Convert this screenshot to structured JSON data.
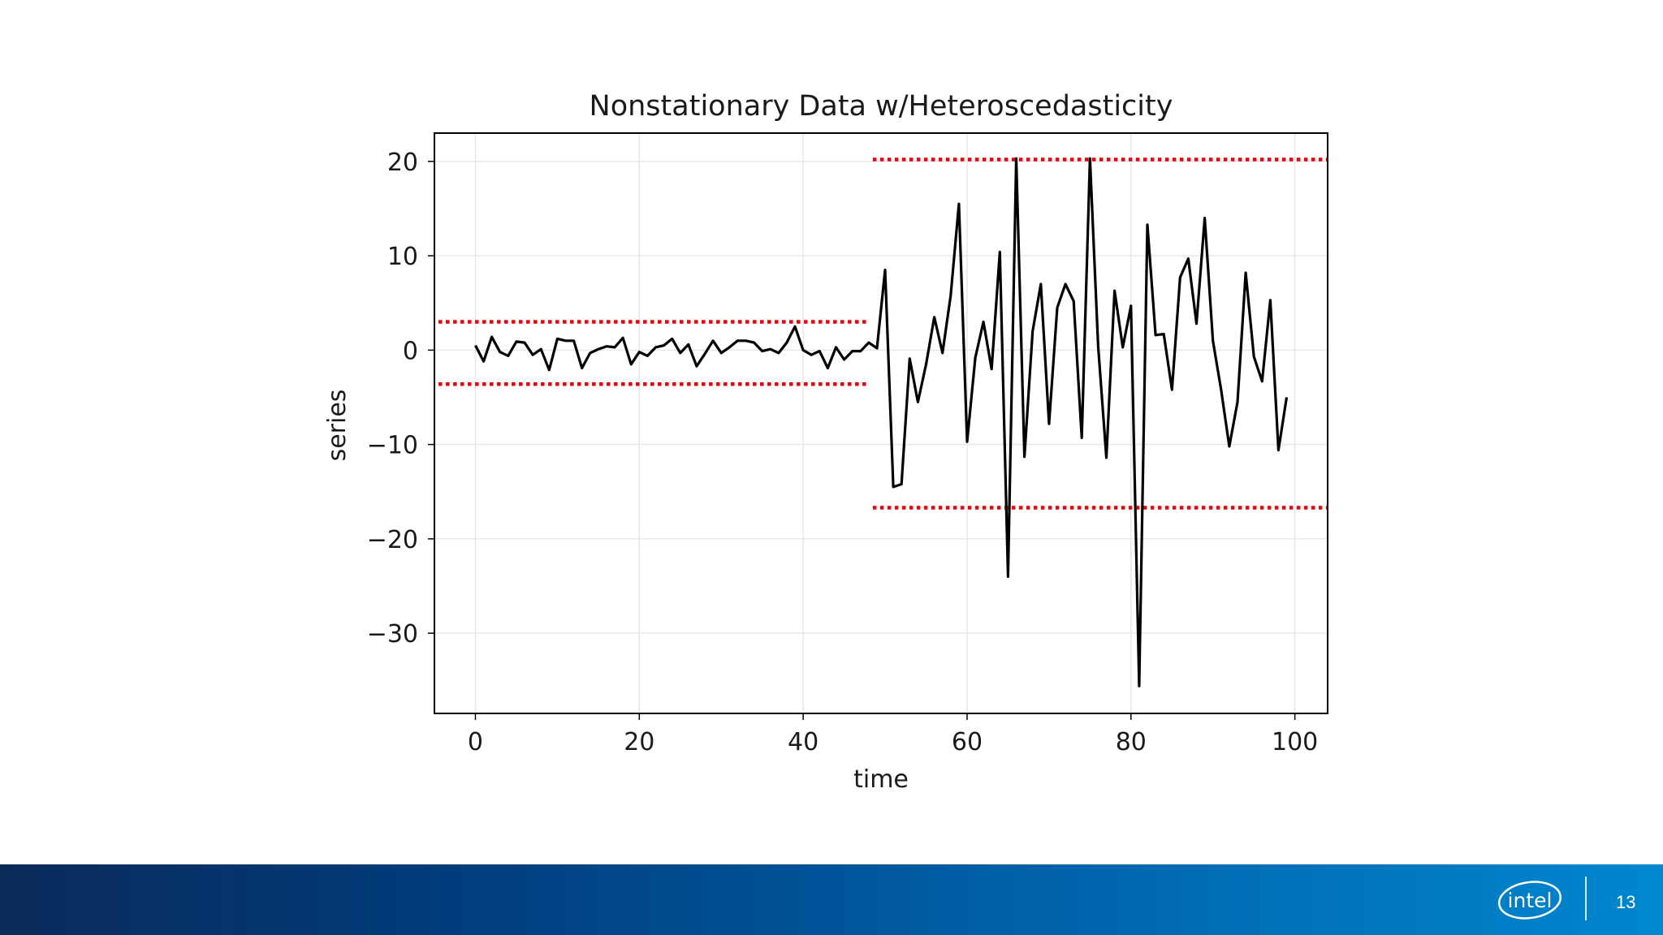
{
  "slide": {
    "page_number": "13",
    "logo_text": "intel"
  },
  "colors": {
    "line": "#000000",
    "bounds": "#e8000b",
    "grid": "#e6e6ef",
    "footer_start": "#0a2a5a",
    "footer_end": "#0087cf"
  },
  "chart_data": {
    "type": "line",
    "title": "Nonstationary Data w/Heteroscedasticity",
    "xlabel": "time",
    "ylabel": "series",
    "xlim": [
      -5,
      104
    ],
    "ylim": [
      -38.5,
      23
    ],
    "xticks": [
      0,
      20,
      40,
      60,
      80,
      100
    ],
    "yticks": [
      -30,
      -20,
      -10,
      0,
      10,
      20
    ],
    "xtick_labels": [
      "0",
      "20",
      "40",
      "60",
      "80",
      "100"
    ],
    "ytick_labels": [
      "−30",
      "−20",
      "−10",
      "0",
      "10",
      "20"
    ],
    "grid": true,
    "series": [
      {
        "x": [
          0,
          1,
          2,
          3,
          4,
          5,
          6,
          7,
          8,
          9,
          10,
          11,
          12,
          13,
          14,
          15,
          16,
          17,
          18,
          19,
          20,
          21,
          22,
          23,
          24,
          25,
          26,
          27,
          28,
          29,
          30,
          31,
          32,
          33,
          34,
          35,
          36,
          37,
          38,
          39,
          40,
          41,
          42,
          43,
          44,
          45,
          46,
          47,
          48,
          49,
          50,
          51,
          52,
          53,
          54,
          55,
          56,
          57,
          58,
          59,
          60,
          61,
          62,
          63,
          64,
          65,
          66,
          67,
          68,
          69,
          70,
          71,
          72,
          73,
          74,
          75,
          76,
          77,
          78,
          79,
          80,
          81,
          82,
          83,
          84,
          85,
          86,
          87,
          88,
          89,
          90,
          91,
          92,
          93,
          94,
          95,
          96,
          97,
          98,
          99
        ],
        "y": [
          0.5,
          -1.2,
          1.4,
          -0.2,
          -0.6,
          0.9,
          0.8,
          -0.5,
          0.1,
          -2.1,
          1.2,
          1.0,
          1.0,
          -1.9,
          -0.3,
          0.1,
          0.4,
          0.3,
          1.3,
          -1.5,
          -0.2,
          -0.6,
          0.3,
          0.5,
          1.2,
          -0.3,
          0.6,
          -1.7,
          -0.4,
          1.0,
          -0.3,
          0.3,
          1.0,
          1.0,
          0.8,
          -0.1,
          0.1,
          -0.3,
          0.8,
          2.5,
          0.0,
          -0.5,
          -0.1,
          -1.9,
          0.3,
          -1.0,
          -0.1,
          -0.1,
          0.8,
          0.2,
          8.5,
          -14.5,
          -14.2,
          -0.9,
          -5.5,
          -1.5,
          3.5,
          -0.3,
          5.8,
          15.5,
          -9.7,
          -0.8,
          3.0,
          -2.0,
          10.4,
          -24.0,
          20.3,
          -11.3,
          2.0,
          7.0,
          -7.8,
          4.5,
          7.0,
          5.2,
          -9.3,
          20.3,
          0.4,
          -11.4,
          6.3,
          0.3,
          4.7,
          -35.6,
          13.3,
          1.6,
          1.7,
          -4.2,
          7.7,
          9.7,
          2.8,
          14.0,
          1.0,
          -4.2,
          -10.2,
          -5.5,
          8.2,
          -0.7,
          -3.3,
          5.3,
          -10.6,
          -5.0
        ]
      }
    ],
    "bounds": [
      {
        "x": [
          -4.5,
          48
        ],
        "y": 3.0
      },
      {
        "x": [
          -4.5,
          48
        ],
        "y": -3.6
      },
      {
        "x": [
          48.5,
          104
        ],
        "y": 20.2
      },
      {
        "x": [
          48.5,
          104
        ],
        "y": -16.7
      }
    ]
  }
}
